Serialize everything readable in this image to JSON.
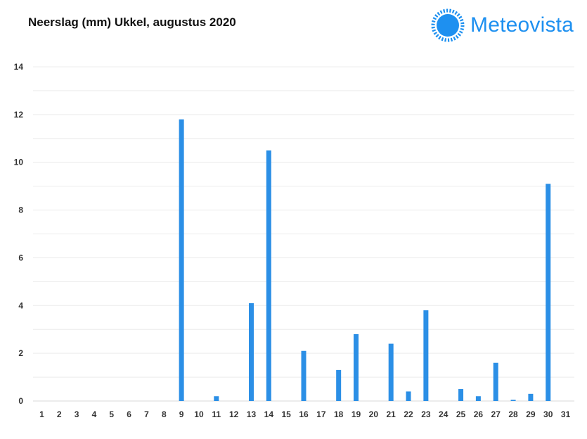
{
  "title": "Neerslag (mm) Ukkel, augustus 2020",
  "logo": {
    "text": "Meteovista",
    "icon": "sun-icon",
    "color": "#1e90f0"
  },
  "chart_data": {
    "type": "bar",
    "title": "Neerslag (mm) Ukkel, augustus 2020",
    "xlabel": "",
    "ylabel": "",
    "categories": [
      "1",
      "2",
      "3",
      "4",
      "5",
      "6",
      "7",
      "8",
      "9",
      "10",
      "11",
      "12",
      "13",
      "14",
      "15",
      "16",
      "17",
      "18",
      "19",
      "20",
      "21",
      "22",
      "23",
      "24",
      "25",
      "26",
      "27",
      "28",
      "29",
      "30",
      "31"
    ],
    "values": [
      0,
      0,
      0,
      0,
      0,
      0,
      0,
      0,
      11.8,
      0,
      0.2,
      0,
      4.1,
      10.5,
      0,
      2.1,
      0,
      1.3,
      2.8,
      0,
      2.4,
      0.4,
      3.8,
      0,
      0.5,
      0.2,
      1.6,
      0.05,
      0.3,
      9.1,
      0
    ],
    "ylim": [
      0,
      14
    ],
    "yticks": [
      0,
      2,
      4,
      6,
      8,
      10,
      12,
      14
    ],
    "grid": true,
    "bar_color": "#2b8fe6",
    "legend": "none"
  }
}
